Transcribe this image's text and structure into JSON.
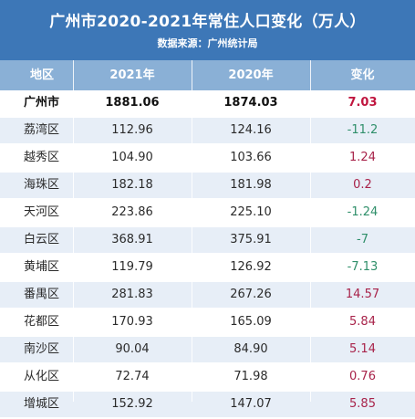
{
  "chart_data": {
    "type": "table",
    "title": "广州市2020-2021年常住人口变化（万人）",
    "subtitle": "数据来源：广州统计局",
    "columns": [
      "地区",
      "2021年",
      "2020年",
      "变化"
    ],
    "rows": [
      {
        "district": "广州市",
        "y2021": "1881.06",
        "y2020": "1874.03",
        "change": "7.03"
      },
      {
        "district": "荔湾区",
        "y2021": "112.96",
        "y2020": "124.16",
        "change": "-11.2"
      },
      {
        "district": "越秀区",
        "y2021": "104.90",
        "y2020": "103.66",
        "change": "1.24"
      },
      {
        "district": "海珠区",
        "y2021": "182.18",
        "y2020": "181.98",
        "change": "0.2"
      },
      {
        "district": "天河区",
        "y2021": "223.86",
        "y2020": "225.10",
        "change": "-1.24"
      },
      {
        "district": "白云区",
        "y2021": "368.91",
        "y2020": "375.91",
        "change": "-7"
      },
      {
        "district": "黄埔区",
        "y2021": "119.79",
        "y2020": "126.92",
        "change": "-7.13"
      },
      {
        "district": "番禺区",
        "y2021": "281.83",
        "y2020": "267.26",
        "change": "14.57"
      },
      {
        "district": "花都区",
        "y2021": "170.93",
        "y2020": "165.09",
        "change": "5.84"
      },
      {
        "district": "南沙区",
        "y2021": "90.04",
        "y2020": "84.90",
        "change": "5.14"
      },
      {
        "district": "从化区",
        "y2021": "72.74",
        "y2020": "71.98",
        "change": "0.76"
      },
      {
        "district": "增城区",
        "y2021": "152.92",
        "y2020": "147.07",
        "change": "5.85"
      }
    ]
  },
  "colors": {
    "header_bg": "#3d77b7",
    "column_header_bg": "#8ab0d6",
    "alt_row_bg": "#e7eef7",
    "positive": "#a8234a",
    "negative": "#2f8f6a",
    "total_change": "#c0163f"
  }
}
